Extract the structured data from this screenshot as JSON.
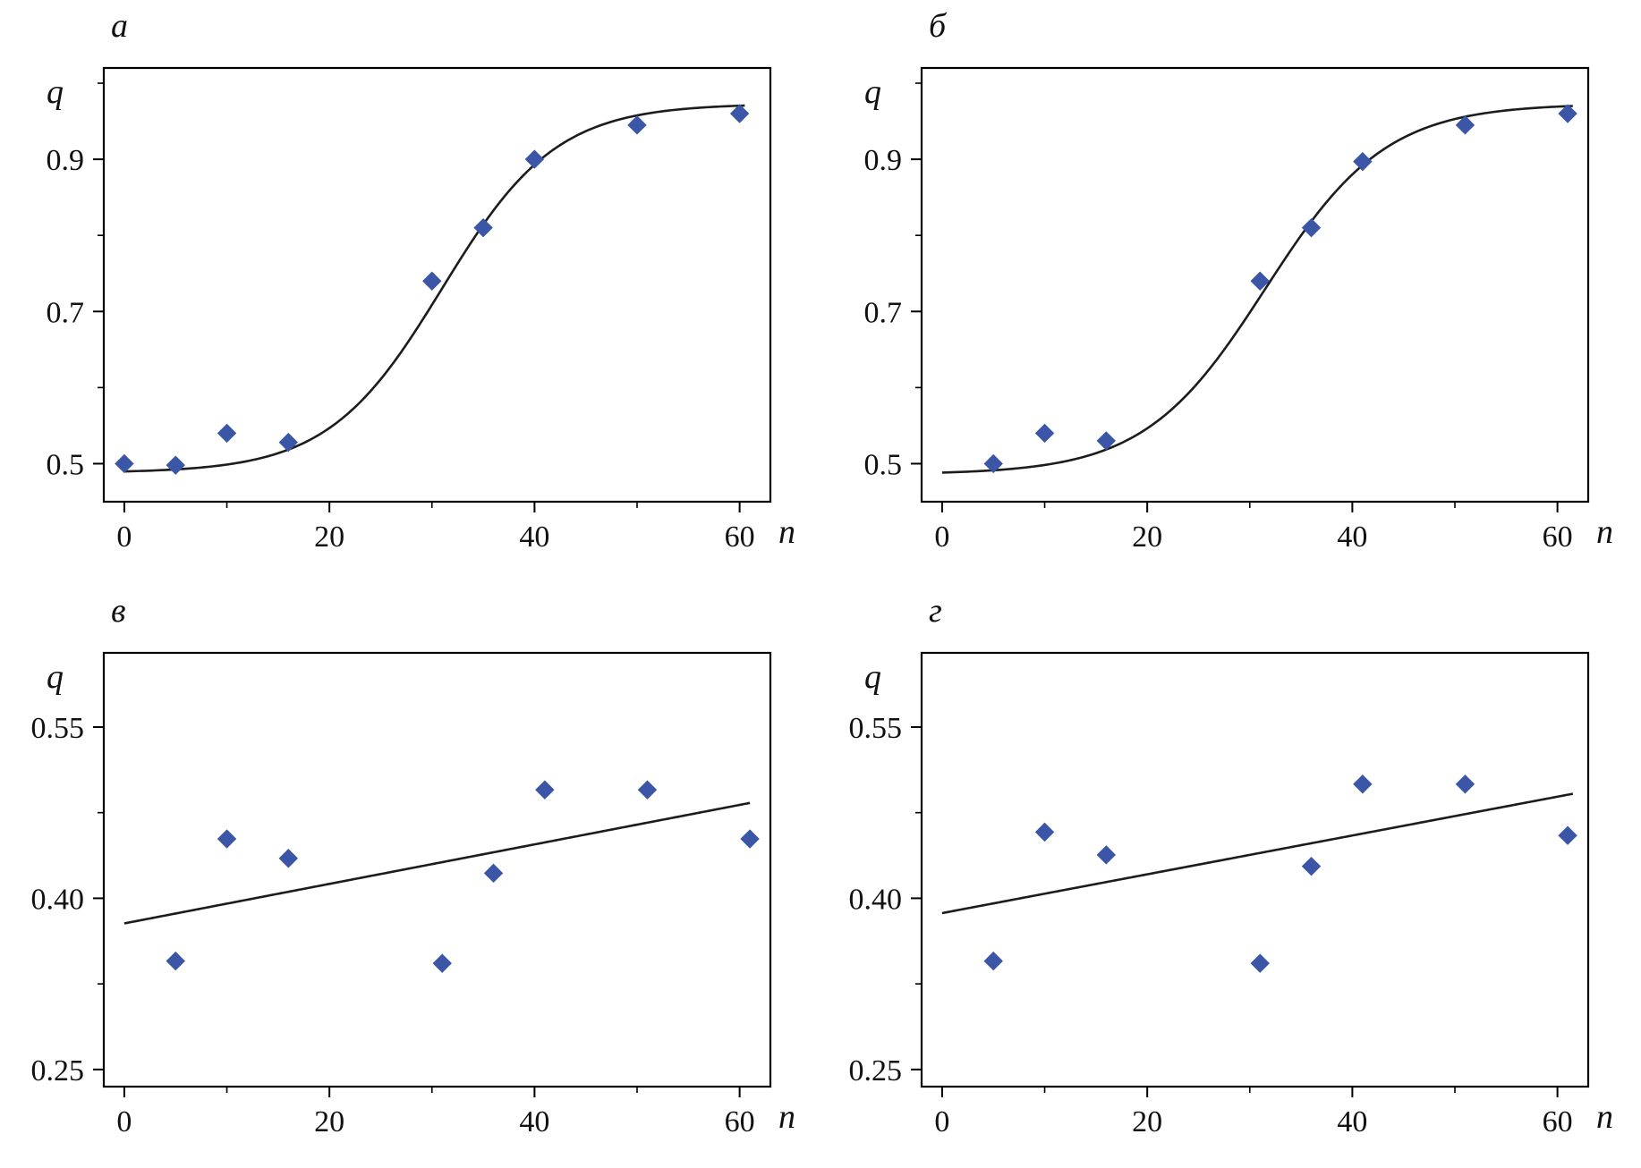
{
  "page": {
    "background": "#ffffff"
  },
  "chart_data": [
    {
      "panel_label": "а",
      "type": "scatter",
      "title": "",
      "xlabel": "n",
      "ylabel": "q",
      "xlim": [
        -2,
        63
      ],
      "ylim": [
        0.45,
        1.02
      ],
      "grid": false,
      "legend": "none",
      "xticks": [
        0,
        20,
        40,
        60
      ],
      "xtick_labels": [
        "0",
        "20",
        "40",
        "60"
      ],
      "xticks_minor": [
        10,
        30,
        50
      ],
      "yticks": [
        0.5,
        0.7,
        0.9
      ],
      "ytick_labels": [
        "0.5",
        "0.7",
        "0.9"
      ],
      "yticks_minor": [
        0.6,
        0.8,
        1.0
      ],
      "points": {
        "x": [
          0,
          5,
          10,
          16,
          30,
          35,
          40,
          50,
          60
        ],
        "y": [
          0.5,
          0.498,
          0.54,
          0.528,
          0.74,
          0.81,
          0.9,
          0.945,
          0.96
        ]
      },
      "fit": {
        "kind": "logistic",
        "base": 0.488,
        "amp": 0.485,
        "x0": 31,
        "k": 0.18,
        "range": [
          0,
          60.5
        ]
      },
      "marker_color": "#3b56a7",
      "line_color": "#1c1c1c"
    },
    {
      "panel_label": "б",
      "type": "scatter",
      "title": "",
      "xlabel": "n",
      "ylabel": "q",
      "xlim": [
        -2,
        63
      ],
      "ylim": [
        0.45,
        1.02
      ],
      "grid": false,
      "legend": "none",
      "xticks": [
        0,
        20,
        40,
        60
      ],
      "xtick_labels": [
        "0",
        "20",
        "40",
        "60"
      ],
      "xticks_minor": [
        10,
        30,
        50
      ],
      "yticks": [
        0.5,
        0.7,
        0.9
      ],
      "ytick_labels": [
        "0.5",
        "0.7",
        "0.9"
      ],
      "yticks_minor": [
        0.6,
        0.8,
        1.0
      ],
      "points": {
        "x": [
          5,
          10,
          16,
          31,
          36,
          41,
          51,
          61
        ],
        "y": [
          0.5,
          0.54,
          0.53,
          0.74,
          0.81,
          0.897,
          0.945,
          0.96
        ]
      },
      "fit": {
        "kind": "logistic",
        "base": 0.486,
        "amp": 0.487,
        "x0": 31.5,
        "k": 0.17,
        "range": [
          0,
          61.5
        ]
      },
      "marker_color": "#3b56a7",
      "line_color": "#1c1c1c"
    },
    {
      "panel_label": "в",
      "type": "scatter",
      "title": "",
      "xlabel": "n",
      "ylabel": "q",
      "xlim": [
        -2,
        63
      ],
      "ylim": [
        0.235,
        0.615
      ],
      "grid": false,
      "legend": "none",
      "xticks": [
        0,
        20,
        40,
        60
      ],
      "xtick_labels": [
        "0",
        "20",
        "40",
        "60"
      ],
      "xticks_minor": [
        10,
        30,
        50
      ],
      "yticks": [
        0.25,
        0.4,
        0.55
      ],
      "ytick_labels": [
        "0.25",
        "0.40",
        "0.55"
      ],
      "yticks_minor": [
        0.325,
        0.475
      ],
      "points": {
        "x": [
          5,
          10,
          16,
          31,
          36,
          41,
          51,
          61
        ],
        "y": [
          0.345,
          0.452,
          0.435,
          0.343,
          0.422,
          0.495,
          0.495,
          0.452
        ]
      },
      "fit": {
        "kind": "linear",
        "intercept": 0.378,
        "slope": 0.00173,
        "range": [
          0,
          61
        ]
      },
      "marker_color": "#3b56a7",
      "line_color": "#1c1c1c"
    },
    {
      "panel_label": "г",
      "type": "scatter",
      "title": "",
      "xlabel": "n",
      "ylabel": "q",
      "xlim": [
        -2,
        63
      ],
      "ylim": [
        0.235,
        0.615
      ],
      "grid": false,
      "legend": "none",
      "xticks": [
        0,
        20,
        40,
        60
      ],
      "xtick_labels": [
        "0",
        "20",
        "40",
        "60"
      ],
      "xticks_minor": [
        10,
        30,
        50
      ],
      "yticks": [
        0.25,
        0.4,
        0.55
      ],
      "ytick_labels": [
        "0.25",
        "0.40",
        "0.55"
      ],
      "yticks_minor": [
        0.325,
        0.475
      ],
      "points": {
        "x": [
          5,
          10,
          16,
          31,
          36,
          41,
          51,
          61
        ],
        "y": [
          0.345,
          0.458,
          0.438,
          0.343,
          0.428,
          0.5,
          0.5,
          0.455
        ]
      },
      "fit": {
        "kind": "linear",
        "intercept": 0.387,
        "slope": 0.0017,
        "range": [
          0,
          61.5
        ]
      },
      "marker_color": "#3b56a7",
      "line_color": "#1c1c1c"
    }
  ]
}
